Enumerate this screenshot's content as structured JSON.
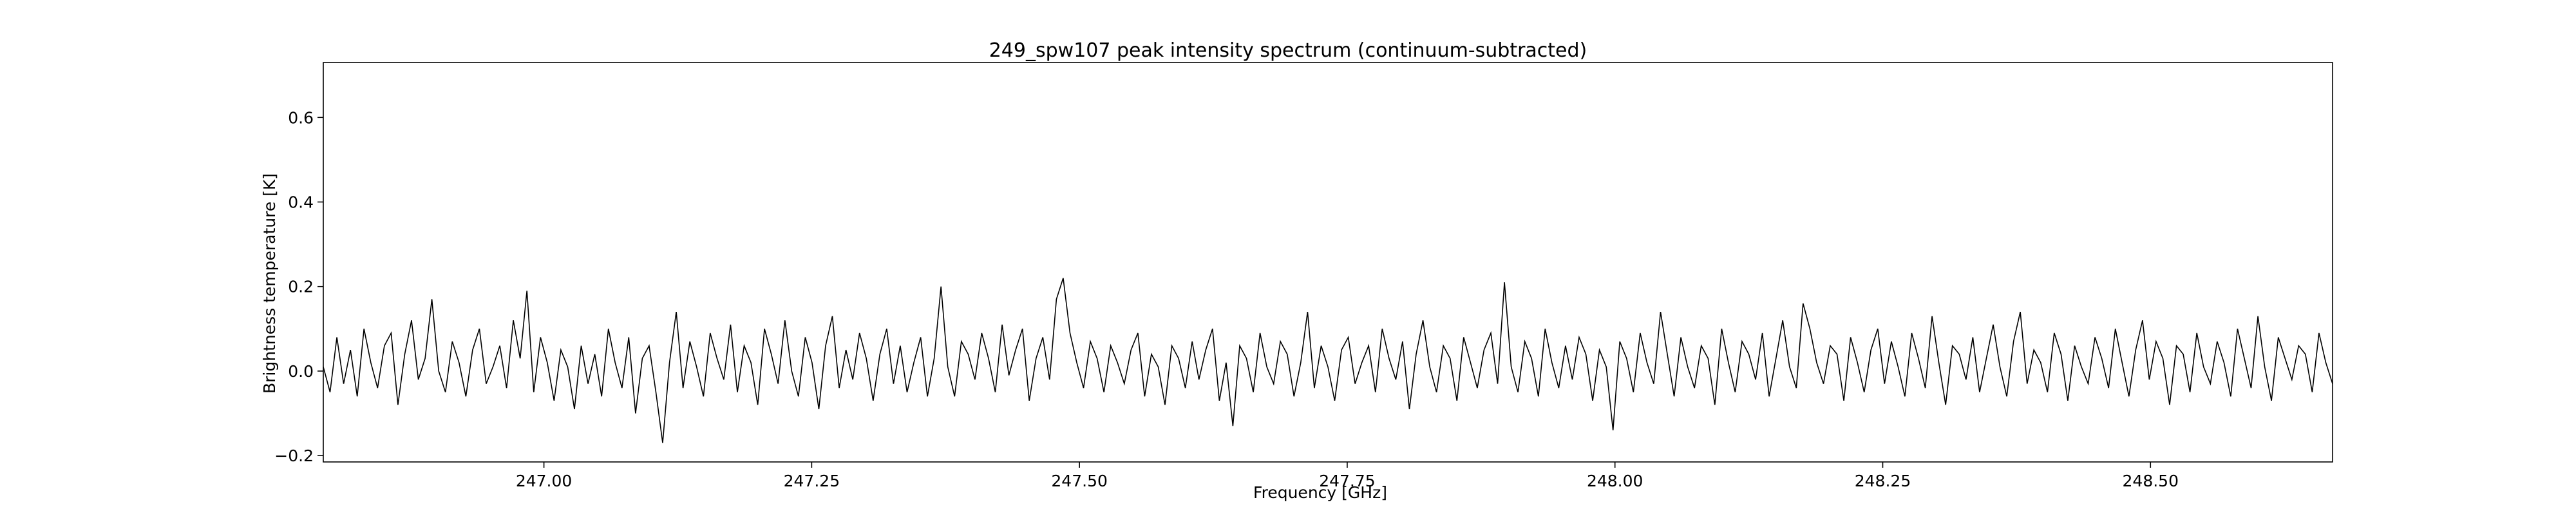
{
  "chart_data": {
    "type": "line",
    "title": "249_spw107 peak intensity spectrum (continuum-subtracted)",
    "xlabel": "Frequency [GHz]",
    "ylabel": "Brightness temperature [K]",
    "xlim": [
      246.794,
      248.67
    ],
    "ylim": [
      -0.215,
      0.73
    ],
    "xticks": [
      247.0,
      247.25,
      247.5,
      247.75,
      248.0,
      248.25,
      248.5
    ],
    "xtick_labels": [
      "247.00",
      "247.25",
      "247.50",
      "247.75",
      "248.00",
      "248.25",
      "248.50"
    ],
    "yticks": [
      -0.2,
      0.0,
      0.2,
      0.4,
      0.6
    ],
    "ytick_labels": [
      "−0.2",
      "0.0",
      "0.2",
      "0.4",
      "0.6"
    ],
    "grid": false,
    "legend": "none",
    "line_color": "#000000",
    "series": [
      {
        "x_start": 246.794,
        "x_end": 248.67,
        "values": [
          0.01,
          -0.05,
          0.08,
          -0.03,
          0.05,
          -0.06,
          0.1,
          0.02,
          -0.04,
          0.06,
          0.09,
          -0.08,
          0.04,
          0.12,
          -0.02,
          0.03,
          0.17,
          0.0,
          -0.05,
          0.07,
          0.02,
          -0.06,
          0.05,
          0.1,
          -0.03,
          0.01,
          0.06,
          -0.04,
          0.12,
          0.03,
          0.19,
          -0.05,
          0.08,
          0.02,
          -0.07,
          0.05,
          0.01,
          -0.09,
          0.06,
          -0.03,
          0.04,
          -0.06,
          0.1,
          0.02,
          -0.04,
          0.08,
          -0.1,
          0.03,
          0.06,
          -0.05,
          -0.17,
          0.02,
          0.14,
          -0.04,
          0.07,
          0.01,
          -0.06,
          0.09,
          0.03,
          -0.02,
          0.11,
          -0.05,
          0.06,
          0.02,
          -0.08,
          0.1,
          0.04,
          -0.03,
          0.12,
          0.0,
          -0.06,
          0.08,
          0.02,
          -0.09,
          0.06,
          0.13,
          -0.04,
          0.05,
          -0.02,
          0.09,
          0.03,
          -0.07,
          0.04,
          0.1,
          -0.03,
          0.06,
          -0.05,
          0.02,
          0.08,
          -0.06,
          0.03,
          0.2,
          0.01,
          -0.06,
          0.07,
          0.04,
          -0.02,
          0.09,
          0.03,
          -0.05,
          0.11,
          -0.01,
          0.05,
          0.1,
          -0.07,
          0.03,
          0.08,
          -0.02,
          0.17,
          0.22,
          0.09,
          0.02,
          -0.04,
          0.07,
          0.03,
          -0.05,
          0.06,
          0.02,
          -0.03,
          0.05,
          0.09,
          -0.06,
          0.04,
          0.01,
          -0.08,
          0.06,
          0.03,
          -0.04,
          0.07,
          -0.02,
          0.05,
          0.1,
          -0.07,
          0.02,
          -0.13,
          0.06,
          0.03,
          -0.05,
          0.09,
          0.01,
          -0.03,
          0.07,
          0.04,
          -0.06,
          0.02,
          0.14,
          -0.04,
          0.06,
          0.01,
          -0.07,
          0.05,
          0.08,
          -0.03,
          0.02,
          0.06,
          -0.05,
          0.1,
          0.03,
          -0.02,
          0.07,
          -0.09,
          0.04,
          0.12,
          0.01,
          -0.05,
          0.06,
          0.03,
          -0.07,
          0.08,
          0.02,
          -0.04,
          0.05,
          0.09,
          -0.03,
          0.21,
          0.01,
          -0.05,
          0.07,
          0.03,
          -0.06,
          0.1,
          0.02,
          -0.04,
          0.06,
          -0.02,
          0.08,
          0.04,
          -0.07,
          0.05,
          0.01,
          -0.14,
          0.07,
          0.03,
          -0.05,
          0.09,
          0.02,
          -0.03,
          0.14,
          0.04,
          -0.06,
          0.08,
          0.01,
          -0.04,
          0.06,
          0.03,
          -0.08,
          0.1,
          0.02,
          -0.05,
          0.07,
          0.04,
          -0.02,
          0.09,
          -0.06,
          0.03,
          0.12,
          0.01,
          -0.04,
          0.16,
          0.1,
          0.02,
          -0.03,
          0.06,
          0.04,
          -0.07,
          0.08,
          0.02,
          -0.05,
          0.05,
          0.1,
          -0.03,
          0.07,
          0.01,
          -0.06,
          0.09,
          0.03,
          -0.04,
          0.13,
          0.02,
          -0.08,
          0.06,
          0.04,
          -0.02,
          0.08,
          -0.05,
          0.03,
          0.11,
          0.01,
          -0.06,
          0.07,
          0.14,
          -0.03,
          0.05,
          0.02,
          -0.05,
          0.09,
          0.04,
          -0.07,
          0.06,
          0.01,
          -0.03,
          0.08,
          0.03,
          -0.04,
          0.1,
          0.02,
          -0.06,
          0.05,
          0.12,
          -0.02,
          0.07,
          0.03,
          -0.08,
          0.06,
          0.04,
          -0.05,
          0.09,
          0.01,
          -0.03,
          0.07,
          0.02,
          -0.06,
          0.1,
          0.03,
          -0.04,
          0.13,
          0.01,
          -0.07,
          0.08,
          0.03,
          -0.02,
          0.06,
          0.04,
          -0.05,
          0.09,
          0.02,
          -0.03
        ]
      }
    ]
  }
}
